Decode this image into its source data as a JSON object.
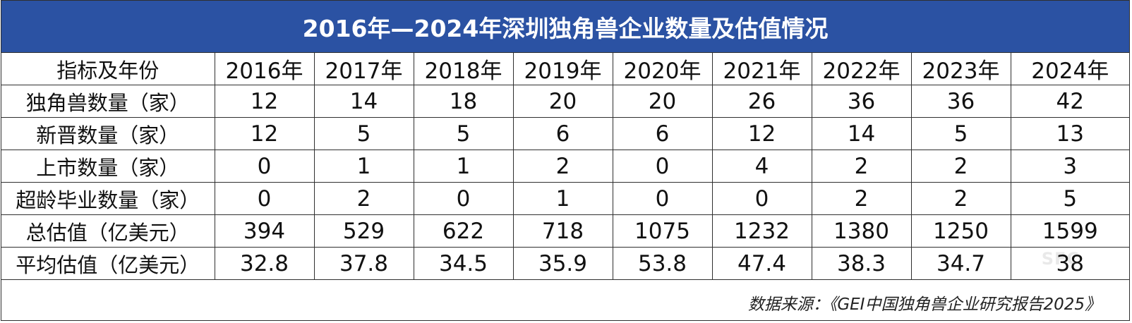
{
  "title": "2016年—2024年深圳独角兽企业数量及估值情况",
  "header_row": [
    "指标及年份",
    "2016年",
    "2017年",
    "2018年",
    "2019年",
    "2020年",
    "2021年",
    "2022年",
    "2023年",
    "2024年"
  ],
  "rows": [
    {
      "label": "独角兽数量（家）",
      "values": [
        "12",
        "14",
        "18",
        "20",
        "20",
        "26",
        "36",
        "36",
        "42"
      ]
    },
    {
      "label": "新晋数量（家）",
      "values": [
        "12",
        "5",
        "5",
        "6",
        "6",
        "12",
        "14",
        "5",
        "13"
      ]
    },
    {
      "label": "上市数量（家）",
      "values": [
        "0",
        "1",
        "1",
        "2",
        "0",
        "4",
        "2",
        "2",
        "3"
      ]
    },
    {
      "label": "超龄毕业数量（家）",
      "values": [
        "0",
        "2",
        "0",
        "1",
        "0",
        "0",
        "2",
        "2",
        "5"
      ]
    },
    {
      "label": "总估值（亿美元）",
      "values": [
        "394",
        "529",
        "622",
        "718",
        "1075",
        "1232",
        "1380",
        "1250",
        "1599"
      ]
    },
    {
      "label": "平均估值（亿美元）",
      "values": [
        "32.8",
        "37.8",
        "34.5",
        "35.9",
        "53.8",
        "47.4",
        "38.3",
        "34.7",
        "38"
      ]
    }
  ],
  "source": "数据来源：《GEI中国独角兽企业研究报告2025》",
  "watermark": "SFC",
  "colors": {
    "title_background": "#2b52a3",
    "title_text": "#ffffff",
    "border": "#2f2f2f"
  }
}
